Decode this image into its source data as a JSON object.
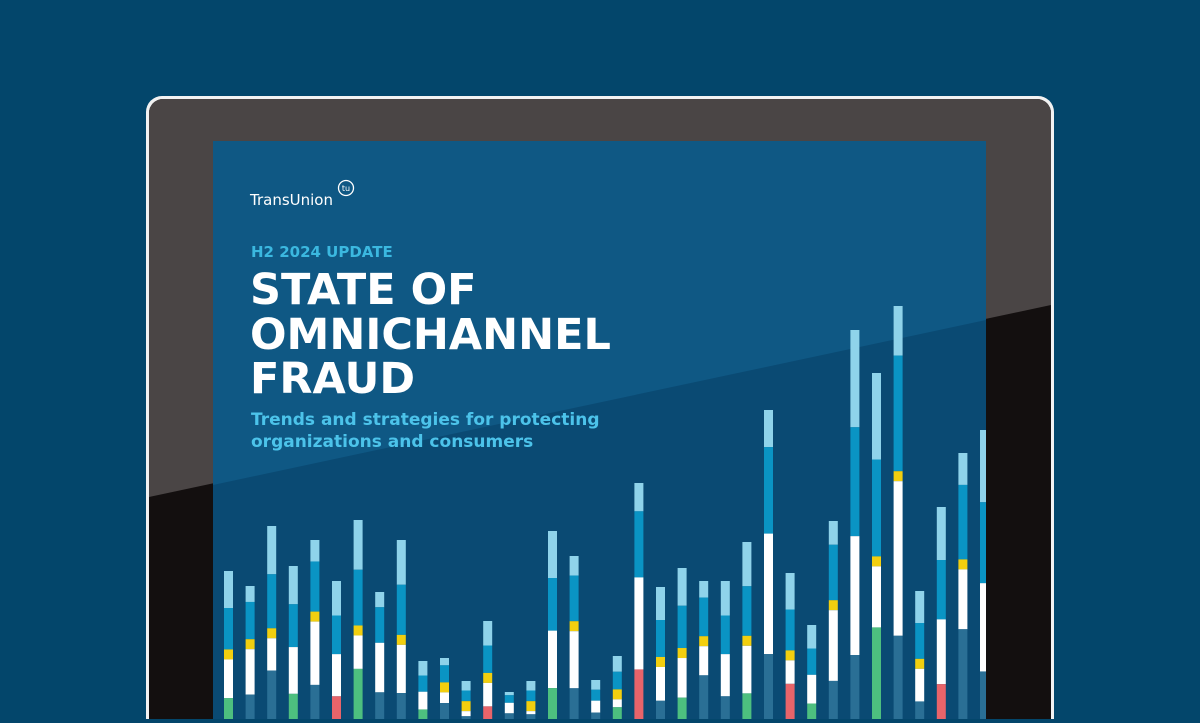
{
  "brand": {
    "name": "TransUnion",
    "mark": "tu"
  },
  "cover": {
    "eyebrow": "H2 2024 UPDATE",
    "title": [
      "STATE OF",
      "OMNICHANNEL",
      "FRAUD"
    ],
    "subtitle": [
      "Trends and strategies for protecting",
      "organizations and consumers"
    ]
  }
}
